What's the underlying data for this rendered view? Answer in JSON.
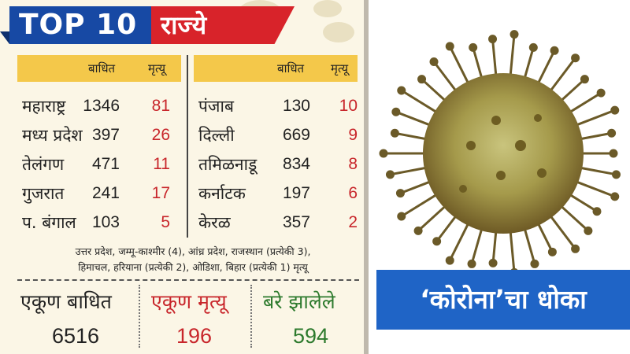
{
  "banner": {
    "top10": "TOP 10",
    "states": "राज्ये"
  },
  "headers": {
    "affected": "बाधित",
    "deaths": "मृत्यू"
  },
  "left_rows": [
    {
      "state": "महाराष्ट्र",
      "affected": "1346",
      "deaths": "81"
    },
    {
      "state": "मध्य प्रदेश",
      "affected": "397",
      "deaths": "26"
    },
    {
      "state": "तेलंगण",
      "affected": "471",
      "deaths": "11"
    },
    {
      "state": "गुजरात",
      "affected": "241",
      "deaths": "17"
    },
    {
      "state": "प. बंगाल",
      "affected": "103",
      "deaths": "5"
    }
  ],
  "right_rows": [
    {
      "state": "पंजाब",
      "affected": "130",
      "deaths": "10"
    },
    {
      "state": "दिल्ली",
      "affected": "669",
      "deaths": "9"
    },
    {
      "state": "तमिळनाडू",
      "affected": "834",
      "deaths": "8"
    },
    {
      "state": "कर्नाटक",
      "affected": "197",
      "deaths": "6"
    },
    {
      "state": "केरळ",
      "affected": "357",
      "deaths": "2"
    }
  ],
  "note": {
    "line1": "उत्तर प्रदेश, जम्मू-काश्मीर (4), आंध्र प्रदेश, राजस्थान (प्रत्येकी 3),",
    "line2": "हिमाचल, हरियाना (प्रत्येकी 2), ओडिशा, बिहार (प्रत्येकी 1)  मृत्यू"
  },
  "totals": {
    "affected_label": "एकूण बाधित",
    "affected_value": "6516",
    "deaths_label": "एकूण मृत्यू",
    "deaths_value": "196",
    "recovered_label": "बरे झालेले",
    "recovered_value": "594"
  },
  "caption": "‘कोरोना’चा धोका",
  "colors": {
    "banner_blue": "#1749a4",
    "banner_red": "#d8232a",
    "header_bar": "#f4c84a",
    "death_red": "#c8262b",
    "recovered_green": "#2d7a2d",
    "caption_blue": "#1f64c6"
  }
}
